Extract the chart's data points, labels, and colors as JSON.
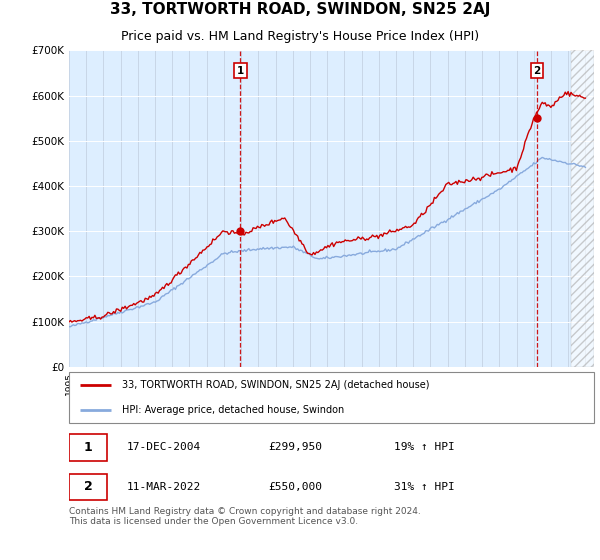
{
  "title": "33, TORTWORTH ROAD, SWINDON, SN25 2AJ",
  "subtitle": "Price paid vs. HM Land Registry's House Price Index (HPI)",
  "title_fontsize": 11,
  "subtitle_fontsize": 9,
  "bg_color": "#ddeeff",
  "line1_color": "#cc0000",
  "line2_color": "#88aadd",
  "marker_color": "#cc0000",
  "dashed_line_color": "#cc0000",
  "ylim": [
    0,
    700000
  ],
  "yticks": [
    0,
    100000,
    200000,
    300000,
    400000,
    500000,
    600000,
    700000
  ],
  "ytick_labels": [
    "£0",
    "£100K",
    "£200K",
    "£300K",
    "£400K",
    "£500K",
    "£600K",
    "£700K"
  ],
  "transaction1_year": 2004.96,
  "transaction1_price": 299950,
  "transaction1_label": "1",
  "transaction1_date": "17-DEC-2004",
  "transaction1_hpi": "19% ↑ HPI",
  "transaction2_year": 2022.19,
  "transaction2_price": 550000,
  "transaction2_label": "2",
  "transaction2_date": "11-MAR-2022",
  "transaction2_hpi": "31% ↑ HPI",
  "legend_line1": "33, TORTWORTH ROAD, SWINDON, SN25 2AJ (detached house)",
  "legend_line2": "HPI: Average price, detached house, Swindon",
  "footer": "Contains HM Land Registry data © Crown copyright and database right 2024.\nThis data is licensed under the Open Government Licence v3.0.",
  "footer_fontsize": 6.5
}
